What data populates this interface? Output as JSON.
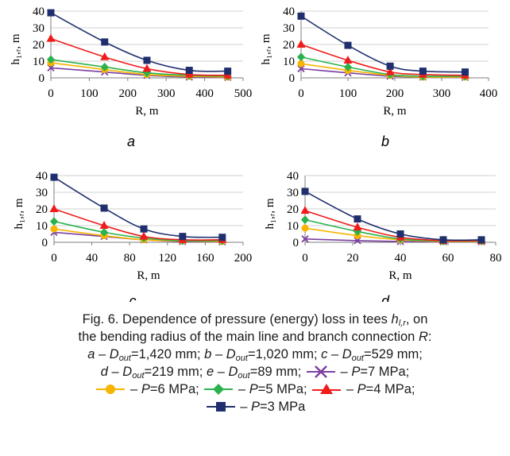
{
  "chart_data": [
    {
      "type": "line",
      "panel_label": "a",
      "xlabel": "R, m",
      "ylabel": "h₁,ᵣ, m",
      "xlim": [
        0,
        500
      ],
      "ylim": [
        0,
        40
      ],
      "xticks": [
        "0",
        "100",
        "200",
        "300",
        "400",
        "500"
      ],
      "yticks": [
        "0",
        "10",
        "20",
        "30",
        "40"
      ],
      "grid": "horizontal",
      "x": [
        0,
        140,
        250,
        360,
        460
      ],
      "series": [
        {
          "name": "P=3 MPa",
          "values": [
            39,
            21.5,
            10.5,
            4.5,
            4
          ]
        },
        {
          "name": "P=4 MPa",
          "values": [
            23.5,
            12.5,
            5.5,
            2,
            1.5
          ]
        },
        {
          "name": "P=5 MPa",
          "values": [
            11,
            6.5,
            3,
            1.5,
            1
          ]
        },
        {
          "name": "P=6 MPa",
          "values": [
            9,
            5,
            2,
            1,
            0.5
          ]
        },
        {
          "name": "P=7 MPa",
          "values": [
            6,
            3.5,
            1.5,
            0.5,
            0.3
          ]
        }
      ]
    },
    {
      "type": "line",
      "panel_label": "b",
      "xlabel": "R, m",
      "ylabel": "h₁,ᵣ, m",
      "xlim": [
        0,
        400
      ],
      "ylim": [
        0,
        40
      ],
      "xticks": [
        "0",
        "100",
        "200",
        "300",
        "400"
      ],
      "yticks": [
        "0",
        "10",
        "20",
        "30",
        "40"
      ],
      "grid": "horizontal",
      "x": [
        0,
        100,
        190,
        260,
        350
      ],
      "series": [
        {
          "name": "P=3 MPa",
          "values": [
            37,
            19.5,
            7,
            4,
            3.5
          ]
        },
        {
          "name": "P=4 MPa",
          "values": [
            20,
            10.5,
            3.5,
            2,
            1.5
          ]
        },
        {
          "name": "P=5 MPa",
          "values": [
            12.5,
            6.5,
            2,
            1,
            1
          ]
        },
        {
          "name": "P=6 MPa",
          "values": [
            8.5,
            4.5,
            1.5,
            0.5,
            0.5
          ]
        },
        {
          "name": "P=7 MPa",
          "values": [
            5.5,
            3,
            1,
            0.5,
            0.3
          ]
        }
      ]
    },
    {
      "type": "line",
      "panel_label": "c",
      "xlabel": "R, m",
      "ylabel": "h₁,ᵣ, m",
      "xlim": [
        0,
        200
      ],
      "ylim": [
        0,
        40
      ],
      "xticks": [
        "0",
        "40",
        "80",
        "120",
        "160",
        "200"
      ],
      "yticks": [
        "0",
        "10",
        "20",
        "30",
        "40"
      ],
      "grid": "horizontal",
      "x": [
        0,
        53,
        95,
        136,
        178
      ],
      "series": [
        {
          "name": "P=3 MPa",
          "values": [
            39,
            20.5,
            8,
            3.5,
            3
          ]
        },
        {
          "name": "P=4 MPa",
          "values": [
            20,
            10,
            3.5,
            1.5,
            1.5
          ]
        },
        {
          "name": "P=5 MPa",
          "values": [
            12.5,
            6,
            2.5,
            1,
            1
          ]
        },
        {
          "name": "P=6 MPa",
          "values": [
            8,
            4,
            1.5,
            0.8,
            0.5
          ]
        },
        {
          "name": "P=7 MPa",
          "values": [
            6,
            3.5,
            1.5,
            0.5,
            0.3
          ]
        }
      ]
    },
    {
      "type": "line",
      "panel_label": "d",
      "xlabel": "R, m",
      "ylabel": "h₁,ᵣ, m",
      "xlim": [
        0,
        80
      ],
      "ylim": [
        0,
        40
      ],
      "xticks": [
        "0",
        "20",
        "40",
        "60",
        "80"
      ],
      "yticks": [
        "0",
        "10",
        "20",
        "30",
        "40"
      ],
      "grid": "horizontal",
      "x": [
        0,
        22,
        40,
        58,
        74
      ],
      "series": [
        {
          "name": "P=3 MPa",
          "values": [
            30.5,
            14,
            5,
            1.5,
            1.5
          ]
        },
        {
          "name": "P=4 MPa",
          "values": [
            19,
            9,
            3,
            1,
            1
          ]
        },
        {
          "name": "P=5 MPa",
          "values": [
            13.5,
            6.5,
            2,
            0.8,
            0.8
          ]
        },
        {
          "name": "P=6 MPa",
          "values": [
            8.5,
            4,
            1.5,
            0.5,
            0.5
          ]
        },
        {
          "name": "P=7 MPa",
          "values": [
            2,
            1,
            0.5,
            0.3,
            0.3
          ]
        }
      ]
    }
  ],
  "colors": {
    "P=3 MPa": "#1f2f6e",
    "P=4 MPa": "#f01c1c",
    "P=5 MPa": "#2ab24d",
    "P=6 MPa": "#f7b500",
    "P=7 MPa": "#7b3fa0"
  },
  "markers": {
    "P=3 MPa": "square",
    "P=4 MPa": "triangle",
    "P=5 MPa": "diamond",
    "P=6 MPa": "circle",
    "P=7 MPa": "x"
  },
  "caption": {
    "fig": "Fig. 6.",
    "text1": " Dependence of pressure (energy) loss in tees ",
    "hvar": "h",
    "hsub": "l,r",
    "text2": ", on",
    "line2a": "the bending radius of the main line and branch connection ",
    "rvar": "R",
    "line2b": ":",
    "a": "a",
    "b": "b",
    "c": "c",
    "d": "d",
    "e": "e",
    "dash": " – ",
    "D": "D",
    "out": "out",
    "eq": "=",
    "da": "1,420 mm; ",
    "db": "1,020 mm; ",
    "dc": "529 mm;",
    "dd": "219 mm; ",
    "de": "89 mm; ",
    "P": "P",
    "p7": "=7 MPa;",
    "p6": "=6 MPa;",
    "p5": "=5 MPa;",
    "p4": "=4 MPa;",
    "p3": "=3 MPa"
  }
}
